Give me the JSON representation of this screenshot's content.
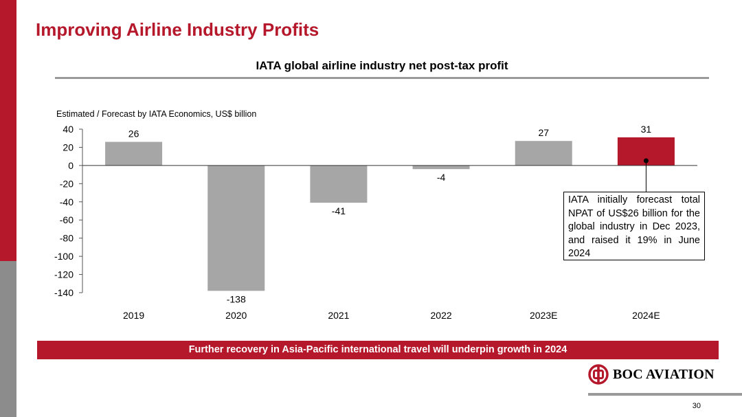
{
  "slide": {
    "title": "Improving Airline Industry Profits",
    "subtitle": "IATA global airline industry net post-tax profit",
    "banner": "Further recovery in Asia-Pacific international travel will underpin growth in 2024",
    "callout": "IATA initially forecast total NPAT of US$26 billion for the global industry in Dec 2023, and raised it 19% in June 2024",
    "logo_text": "BOC AVIATION",
    "page_number": "30"
  },
  "colors": {
    "brand_red": "#b5172b",
    "bar_grey": "#a6a6a6",
    "rule_grey": "#9a9a9a"
  },
  "chart_data": {
    "type": "bar",
    "title": "IATA global airline industry net post-tax profit",
    "ylabel": "Estimated / Forecast by IATA Economics, US$ billion",
    "xlabel": "",
    "categories": [
      "2019",
      "2020",
      "2021",
      "2022",
      "2023E",
      "2024E"
    ],
    "values": [
      26,
      -138,
      -41,
      -4,
      27,
      31
    ],
    "data_labels": [
      "26",
      "-138",
      "-41",
      "-4",
      "27",
      "31"
    ],
    "highlight_index": 5,
    "ylim": [
      -140,
      40
    ],
    "yticks": [
      40,
      20,
      0,
      -20,
      -40,
      -60,
      -80,
      -100,
      -120,
      -140
    ],
    "grid": false,
    "legend": "none"
  }
}
